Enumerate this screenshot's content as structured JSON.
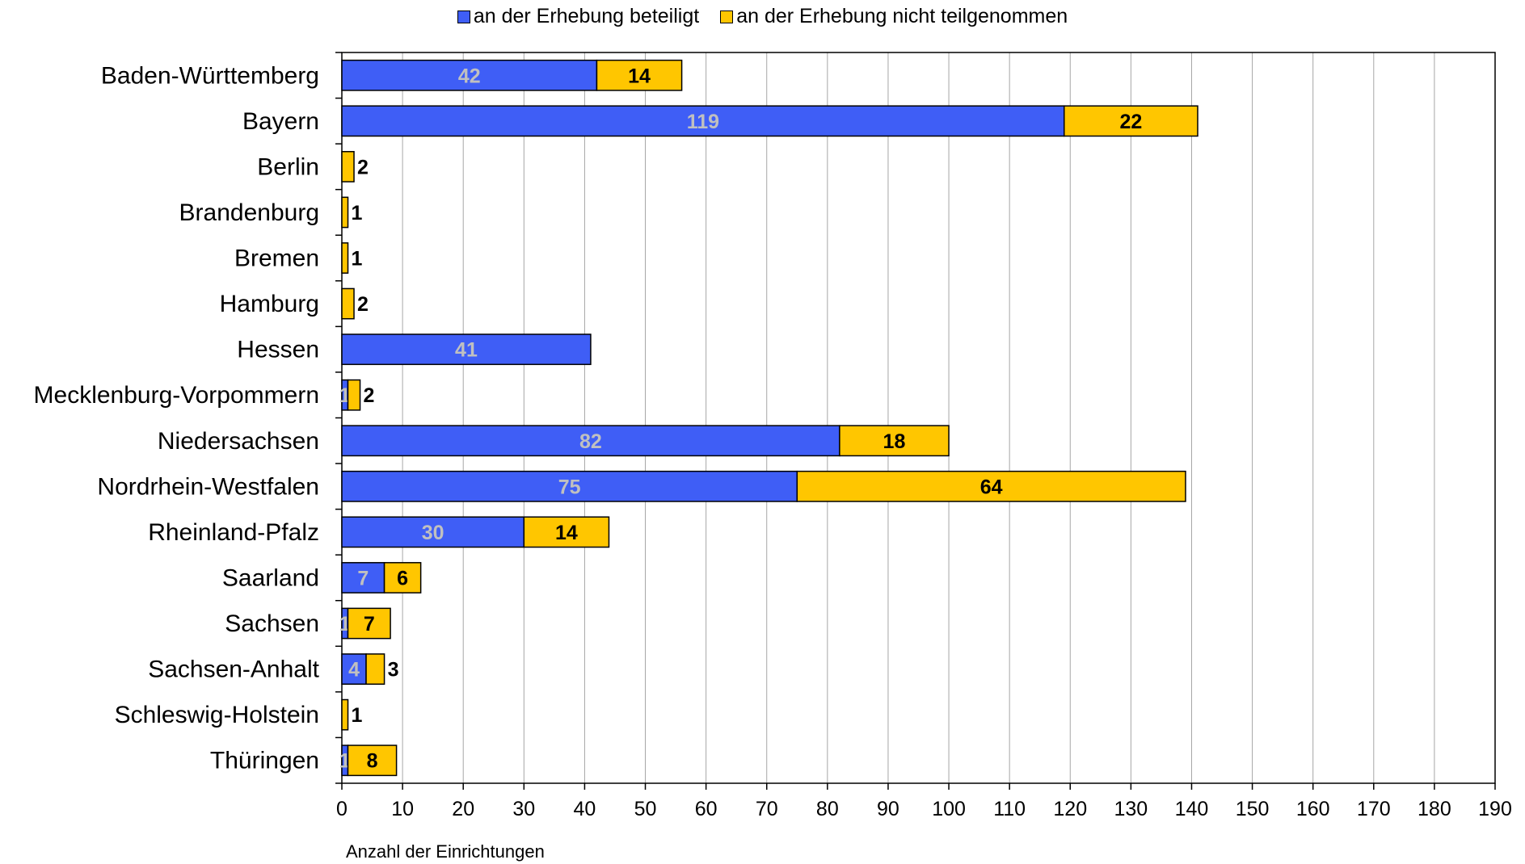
{
  "chart_data": {
    "type": "bar",
    "orientation": "horizontal",
    "stacked": true,
    "categories": [
      "Baden-Württemberg",
      "Bayern",
      "Berlin",
      "Brandenburg",
      "Bremen",
      "Hamburg",
      "Hessen",
      "Mecklenburg-Vorpommern",
      "Niedersachsen",
      "Nordrhein-Westfalen",
      "Rheinland-Pfalz",
      "Saarland",
      "Sachsen",
      "Sachsen-Anhalt",
      "Schleswig-Holstein",
      "Thüringen"
    ],
    "series": [
      {
        "name": "an der Erhebung beteiligt",
        "color": "#3f5ef6",
        "label_color": "#c0c0c0",
        "values": [
          42,
          119,
          0,
          0,
          0,
          0,
          41,
          1,
          82,
          75,
          30,
          7,
          1,
          4,
          0,
          1
        ]
      },
      {
        "name": "an der Erhebung nicht teilgenommen",
        "color": "#ffc600",
        "label_color": "#000000",
        "values": [
          14,
          22,
          2,
          1,
          1,
          2,
          0,
          2,
          18,
          64,
          14,
          6,
          7,
          3,
          1,
          8
        ]
      }
    ],
    "xlabel": "Anzahl der Einrichtungen",
    "xlim": [
      0,
      190
    ],
    "xticks": [
      0,
      10,
      20,
      30,
      40,
      50,
      60,
      70,
      80,
      90,
      100,
      110,
      120,
      130,
      140,
      150,
      160,
      170,
      180,
      190
    ],
    "grid": "vertical",
    "legend_position": "top"
  }
}
